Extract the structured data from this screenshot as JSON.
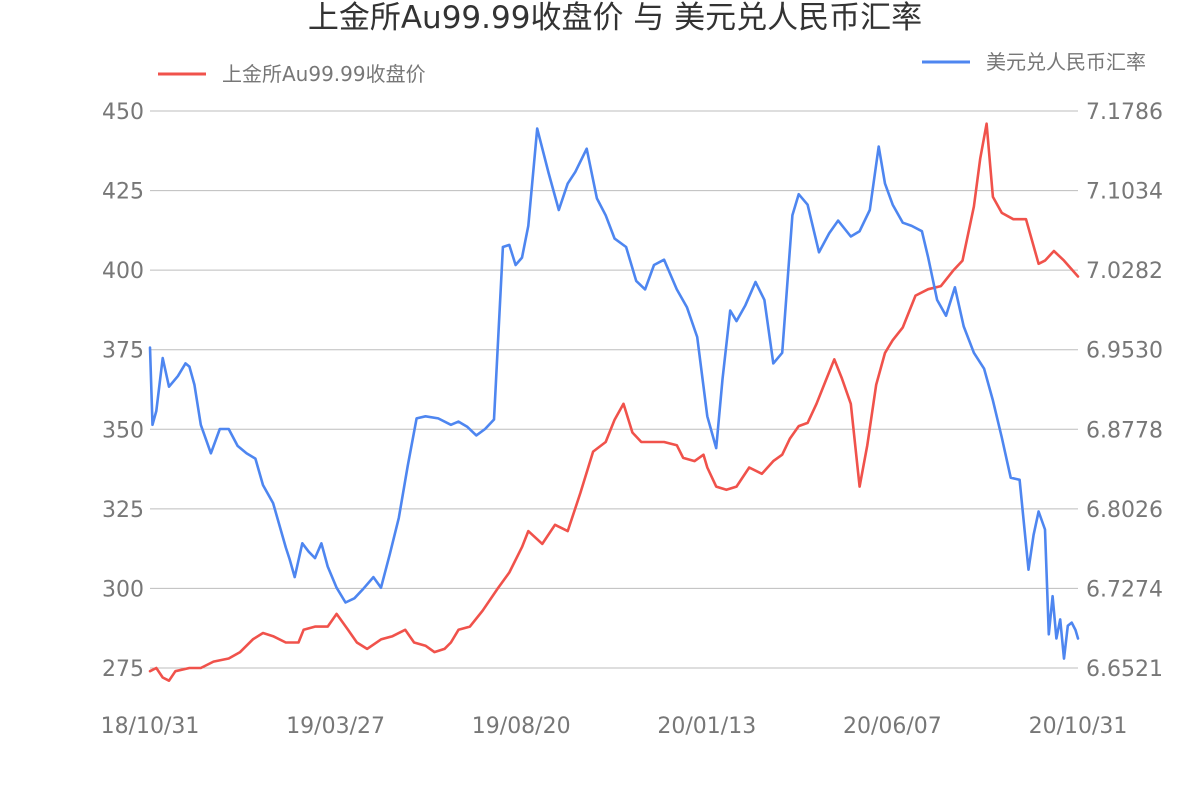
{
  "chart_data": {
    "type": "line",
    "title": "上金所Au99.99收盘价 与 美元兑人民币汇率",
    "x_tick_labels": [
      "18/10/31",
      "19/03/27",
      "19/08/20",
      "20/01/13",
      "20/06/07",
      "20/10/31"
    ],
    "x_domain": [
      "2018-10-31",
      "2020-10-31"
    ],
    "y_left": {
      "ticks": [
        275,
        300,
        325,
        350,
        375,
        400,
        425,
        450
      ],
      "ylim": [
        275,
        450
      ]
    },
    "y_right": {
      "ticks": [
        "6.6521",
        "6.7274",
        "6.8026",
        "6.8778",
        "6.9530",
        "7.0282",
        "7.1034",
        "7.1786"
      ],
      "ylim": [
        6.6521,
        7.1786
      ]
    },
    "grid": true,
    "series": [
      {
        "name": "上金所Au99.99收盘价",
        "axis": "left",
        "color": "#f0524b",
        "points": [
          [
            "2018-10-31",
            274
          ],
          [
            "2018-11-05",
            275
          ],
          [
            "2018-11-10",
            272
          ],
          [
            "2018-11-15",
            271
          ],
          [
            "2018-11-20",
            274
          ],
          [
            "2018-12-01",
            275
          ],
          [
            "2018-12-10",
            275
          ],
          [
            "2018-12-20",
            277
          ],
          [
            "2019-01-01",
            278
          ],
          [
            "2019-01-10",
            280
          ],
          [
            "2019-01-20",
            284
          ],
          [
            "2019-01-28",
            286
          ],
          [
            "2019-02-05",
            285
          ],
          [
            "2019-02-15",
            283
          ],
          [
            "2019-02-25",
            283
          ],
          [
            "2019-03-01",
            287
          ],
          [
            "2019-03-10",
            288
          ],
          [
            "2019-03-20",
            288
          ],
          [
            "2019-03-27",
            292
          ],
          [
            "2019-04-05",
            287
          ],
          [
            "2019-04-12",
            283
          ],
          [
            "2019-04-20",
            281
          ],
          [
            "2019-05-01",
            284
          ],
          [
            "2019-05-10",
            285
          ],
          [
            "2019-05-20",
            287
          ],
          [
            "2019-05-27",
            283
          ],
          [
            "2019-06-05",
            282
          ],
          [
            "2019-06-12",
            280
          ],
          [
            "2019-06-20",
            281
          ],
          [
            "2019-06-25",
            283
          ],
          [
            "2019-07-01",
            287
          ],
          [
            "2019-07-10",
            288
          ],
          [
            "2019-07-20",
            293
          ],
          [
            "2019-08-01",
            300
          ],
          [
            "2019-08-10",
            305
          ],
          [
            "2019-08-20",
            313
          ],
          [
            "2019-08-25",
            318
          ],
          [
            "2019-09-05",
            314
          ],
          [
            "2019-09-15",
            320
          ],
          [
            "2019-09-25",
            318
          ],
          [
            "2019-10-05",
            330
          ],
          [
            "2019-10-15",
            343
          ],
          [
            "2019-10-25",
            346
          ],
          [
            "2019-11-01",
            353
          ],
          [
            "2019-11-08",
            358
          ],
          [
            "2019-11-15",
            349
          ],
          [
            "2019-11-22",
            346
          ],
          [
            "2019-12-01",
            346
          ],
          [
            "2019-12-10",
            346
          ],
          [
            "2019-12-20",
            345
          ],
          [
            "2019-12-25",
            341
          ],
          [
            "2020-01-03",
            340
          ],
          [
            "2020-01-10",
            342
          ],
          [
            "2020-01-13",
            338
          ],
          [
            "2020-01-20",
            332
          ],
          [
            "2020-01-28",
            331
          ],
          [
            "2020-02-05",
            332
          ],
          [
            "2020-02-15",
            338
          ],
          [
            "2020-02-25",
            336
          ],
          [
            "2020-03-05",
            340
          ],
          [
            "2020-03-12",
            342
          ],
          [
            "2020-03-18",
            347
          ],
          [
            "2020-03-25",
            351
          ],
          [
            "2020-04-01",
            352
          ],
          [
            "2020-04-08",
            358
          ],
          [
            "2020-04-15",
            365
          ],
          [
            "2020-04-22",
            372
          ],
          [
            "2020-04-28",
            366
          ],
          [
            "2020-05-05",
            358
          ],
          [
            "2020-05-12",
            332
          ],
          [
            "2020-05-18",
            345
          ],
          [
            "2020-05-25",
            364
          ],
          [
            "2020-06-01",
            374
          ],
          [
            "2020-06-07",
            378
          ],
          [
            "2020-06-15",
            382
          ],
          [
            "2020-06-25",
            392
          ],
          [
            "2020-07-05",
            394
          ],
          [
            "2020-07-15",
            395
          ],
          [
            "2020-07-25",
            400
          ],
          [
            "2020-08-01",
            403
          ],
          [
            "2020-08-10",
            420
          ],
          [
            "2020-08-15",
            435
          ],
          [
            "2020-08-20",
            446
          ],
          [
            "2020-08-25",
            423
          ],
          [
            "2020-09-01",
            418
          ],
          [
            "2020-09-10",
            416
          ],
          [
            "2020-09-20",
            416
          ],
          [
            "2020-09-30",
            402
          ],
          [
            "2020-10-05",
            403
          ],
          [
            "2020-10-12",
            406
          ],
          [
            "2020-10-20",
            403
          ],
          [
            "2020-10-31",
            398
          ]
        ]
      },
      {
        "name": "美元兑人民币汇率",
        "axis": "right",
        "color": "#4e86f0",
        "points": [
          [
            "2018-10-31",
            6.955
          ],
          [
            "2018-11-02",
            6.882
          ],
          [
            "2018-11-05",
            6.895
          ],
          [
            "2018-11-10",
            6.945
          ],
          [
            "2018-11-15",
            6.918
          ],
          [
            "2018-11-22",
            6.928
          ],
          [
            "2018-11-28",
            6.94
          ],
          [
            "2018-12-01",
            6.937
          ],
          [
            "2018-12-05",
            6.92
          ],
          [
            "2018-12-10",
            6.882
          ],
          [
            "2018-12-18",
            6.855
          ],
          [
            "2018-12-25",
            6.878
          ],
          [
            "2019-01-01",
            6.878
          ],
          [
            "2019-01-08",
            6.862
          ],
          [
            "2019-01-15",
            6.855
          ],
          [
            "2019-01-22",
            6.85
          ],
          [
            "2019-01-28",
            6.825
          ],
          [
            "2019-02-05",
            6.808
          ],
          [
            "2019-02-15",
            6.766
          ],
          [
            "2019-02-18",
            6.755
          ],
          [
            "2019-02-22",
            6.738
          ],
          [
            "2019-02-28",
            6.77
          ],
          [
            "2019-03-05",
            6.762
          ],
          [
            "2019-03-10",
            6.756
          ],
          [
            "2019-03-15",
            6.77
          ],
          [
            "2019-03-20",
            6.748
          ],
          [
            "2019-03-27",
            6.728
          ],
          [
            "2019-04-03",
            6.714
          ],
          [
            "2019-04-10",
            6.718
          ],
          [
            "2019-04-17",
            6.727
          ],
          [
            "2019-04-25",
            6.738
          ],
          [
            "2019-05-01",
            6.728
          ],
          [
            "2019-05-08",
            6.76
          ],
          [
            "2019-05-15",
            6.794
          ],
          [
            "2019-05-22",
            6.843
          ],
          [
            "2019-05-29",
            6.888
          ],
          [
            "2019-06-05",
            6.89
          ],
          [
            "2019-06-15",
            6.888
          ],
          [
            "2019-06-25",
            6.882
          ],
          [
            "2019-07-01",
            6.885
          ],
          [
            "2019-07-08",
            6.88
          ],
          [
            "2019-07-15",
            6.872
          ],
          [
            "2019-07-22",
            6.878
          ],
          [
            "2019-07-29",
            6.887
          ],
          [
            "2019-08-05",
            7.05
          ],
          [
            "2019-08-10",
            7.052
          ],
          [
            "2019-08-15",
            7.033
          ],
          [
            "2019-08-20",
            7.04
          ],
          [
            "2019-08-25",
            7.07
          ],
          [
            "2019-09-01",
            7.162
          ],
          [
            "2019-09-10",
            7.12
          ],
          [
            "2019-09-18",
            7.085
          ],
          [
            "2019-09-25",
            7.11
          ],
          [
            "2019-10-01",
            7.121
          ],
          [
            "2019-10-10",
            7.143
          ],
          [
            "2019-10-18",
            7.096
          ],
          [
            "2019-10-25",
            7.08
          ],
          [
            "2019-11-01",
            7.058
          ],
          [
            "2019-11-10",
            7.05
          ],
          [
            "2019-11-18",
            7.018
          ],
          [
            "2019-11-25",
            7.01
          ],
          [
            "2019-12-02",
            7.033
          ],
          [
            "2019-12-10",
            7.038
          ],
          [
            "2019-12-20",
            7.01
          ],
          [
            "2019-12-28",
            6.993
          ],
          [
            "2020-01-05",
            6.965
          ],
          [
            "2020-01-13",
            6.89
          ],
          [
            "2020-01-20",
            6.86
          ],
          [
            "2020-01-25",
            6.925
          ],
          [
            "2020-01-31",
            6.99
          ],
          [
            "2020-02-05",
            6.98
          ],
          [
            "2020-02-12",
            6.995
          ],
          [
            "2020-02-20",
            7.017
          ],
          [
            "2020-02-27",
            7.0
          ],
          [
            "2020-03-05",
            6.94
          ],
          [
            "2020-03-12",
            6.95
          ],
          [
            "2020-03-20",
            7.08
          ],
          [
            "2020-03-25",
            7.1
          ],
          [
            "2020-04-01",
            7.09
          ],
          [
            "2020-04-10",
            7.045
          ],
          [
            "2020-04-18",
            7.063
          ],
          [
            "2020-04-25",
            7.075
          ],
          [
            "2020-05-05",
            7.06
          ],
          [
            "2020-05-12",
            7.065
          ],
          [
            "2020-05-20",
            7.085
          ],
          [
            "2020-05-27",
            7.145
          ],
          [
            "2020-06-01",
            7.11
          ],
          [
            "2020-06-07",
            7.09
          ],
          [
            "2020-06-15",
            7.073
          ],
          [
            "2020-06-22",
            7.07
          ],
          [
            "2020-06-30",
            7.065
          ],
          [
            "2020-07-05",
            7.04
          ],
          [
            "2020-07-12",
            7.0
          ],
          [
            "2020-07-19",
            6.985
          ],
          [
            "2020-07-26",
            7.012
          ],
          [
            "2020-08-02",
            6.975
          ],
          [
            "2020-08-10",
            6.95
          ],
          [
            "2020-08-18",
            6.935
          ],
          [
            "2020-08-25",
            6.905
          ],
          [
            "2020-09-01",
            6.87
          ],
          [
            "2020-09-08",
            6.832
          ],
          [
            "2020-09-15",
            6.83
          ],
          [
            "2020-09-22",
            6.745
          ],
          [
            "2020-09-26",
            6.778
          ],
          [
            "2020-09-30",
            6.8
          ],
          [
            "2020-10-05",
            6.783
          ],
          [
            "2020-10-08",
            6.684
          ],
          [
            "2020-10-11",
            6.72
          ],
          [
            "2020-10-14",
            6.68
          ],
          [
            "2020-10-17",
            6.698
          ],
          [
            "2020-10-20",
            6.661
          ],
          [
            "2020-10-23",
            6.692
          ],
          [
            "2020-10-26",
            6.695
          ],
          [
            "2020-10-29",
            6.688
          ],
          [
            "2020-10-31",
            6.68
          ]
        ]
      }
    ]
  }
}
